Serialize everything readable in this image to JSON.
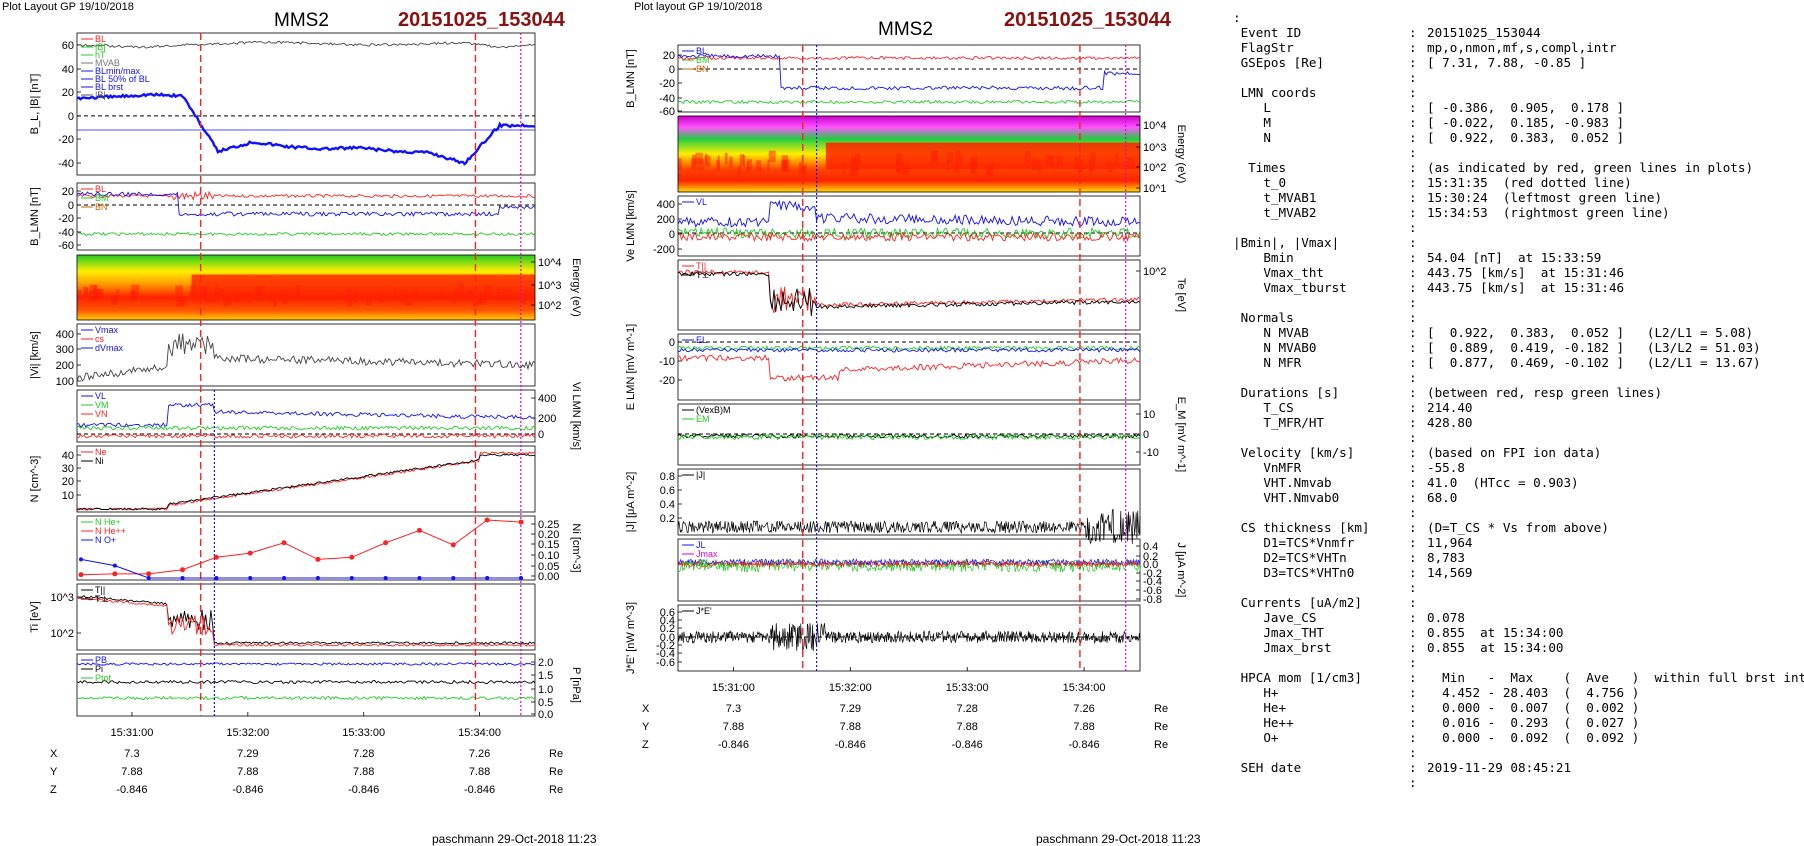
{
  "left": {
    "plot_label": "Plot Layout GP 19/10/2018",
    "spacecraft": "MMS2",
    "event": "20151025_153044",
    "footer": "paschmann 29-Oct-2018 11:23"
  },
  "middle": {
    "plot_label": "Plot layout GP 19/10/2018",
    "spacecraft": "MMS2",
    "event": "20151025_153044",
    "footer": "paschmann 29-Oct-2018 11:23"
  },
  "colors": {
    "red": "#ff2020",
    "green": "#22cc22",
    "blue": "#1010ff",
    "black": "#000000",
    "magenta": "#dd00dd",
    "gray": "#888888"
  },
  "chart_data": [
    {
      "type": "line",
      "panel": "left",
      "time_axis": {
        "range": [
          "15:30:40",
          "15:34:20"
        ],
        "ticks": [
          "15:31:00",
          "15:32:00",
          "15:33:00",
          "15:34:00"
        ]
      },
      "markers": {
        "red_dashed": [
          "15:30:24",
          "15:34:53"
        ],
        "red_dotted": "15:31:35",
        "blue_dotted": "15:31:46",
        "magenta_dotted": "15:34:00"
      },
      "position_table": {
        "rows": [
          {
            "label": "X",
            "values": [
              "7.3",
              "7.29",
              "7.28",
              "7.26"
            ],
            "unit": "Re"
          },
          {
            "label": "Y",
            "values": [
              "7.88",
              "7.88",
              "7.88",
              "7.88"
            ],
            "unit": "Re"
          },
          {
            "label": "Z",
            "values": [
              "-0.846",
              "-0.846",
              "-0.846",
              "-0.846"
            ],
            "unit": "Re"
          }
        ]
      },
      "panels": [
        {
          "ylabel": "B_L, |B| [nT]",
          "yticks": [
            "60",
            "40",
            "20",
            "0",
            "-20",
            "-40"
          ],
          "ylim": [
            -50,
            70
          ],
          "legend": [
            "BL",
            "|B|",
            "hT",
            "MVAB",
            "BLmin/max",
            "BL 50% of BL",
            "BL brst",
            "|B|"
          ],
          "series": [
            {
              "name": "BL",
              "values": [
                15,
                16,
                18,
                17,
                -30,
                -22,
                -26,
                -28,
                -27,
                -30,
                -31,
                -40,
                -8,
                -8
              ]
            },
            {
              "name": "|B|",
              "values": [
                60,
                59,
                58,
                60,
                61,
                62,
                62,
                61,
                60,
                60,
                61,
                62,
                58,
                60
              ]
            }
          ]
        },
        {
          "ylabel": "B_LMN [nT]",
          "yticks": [
            "20",
            "0",
            "-20",
            "-40",
            "-60"
          ],
          "ylim": [
            -70,
            30
          ],
          "legend": [
            "BL",
            "BM",
            "BN"
          ]
        },
        {
          "ylabel": "Energy (eV)",
          "yticks": [
            "10^4",
            "10^3",
            "10^2"
          ],
          "type": "spectrogram"
        },
        {
          "ylabel": "|Vi| [km/s]",
          "yticks": [
            "400",
            "300",
            "200",
            "100"
          ],
          "ylim": [
            80,
            450
          ],
          "legend": [
            "Vmax",
            "cs",
            "dVmax"
          ]
        },
        {
          "ylabel": "Vi LMN [km/s]",
          "yticks": [
            "400",
            "200",
            "0"
          ],
          "ylim": [
            -50,
            450
          ],
          "legend": [
            "VL",
            "VM",
            "VN"
          ]
        },
        {
          "ylabel": "N [cm^-3]",
          "yticks": [
            "40",
            "30",
            "20",
            "10"
          ],
          "ylim": [
            0,
            48
          ],
          "legend": [
            "Ne",
            "Ni"
          ]
        },
        {
          "ylabel": "Ni [cm^-3]",
          "yticks": [
            "0.25",
            "0.20",
            "0.15",
            "0.10",
            "0.05",
            "0.00"
          ],
          "ylim": [
            0,
            0.28
          ],
          "legend": [
            "N He+",
            "N He++",
            "N O+"
          ],
          "series": [
            {
              "name": "N He++",
              "values": [
                0.016,
                0.02,
                0.02,
                0.04,
                0.1,
                0.12,
                0.17,
                0.09,
                0.1,
                0.17,
                0.23,
                0.16,
                0.28,
                0.27
              ]
            },
            {
              "name": "N O+",
              "values": [
                0.09,
                0.06,
                0.0,
                0.0,
                0.0,
                0.0,
                0.0,
                0.0,
                0.0,
                0.0,
                0.0,
                0.0,
                0.0,
                0.0
              ]
            }
          ]
        },
        {
          "ylabel": "Ti [eV]",
          "yticks": [
            "10^3",
            "10^2"
          ],
          "legend": [
            "T||",
            "T⊥"
          ]
        },
        {
          "ylabel": "P [nPa]",
          "yticks": [
            "2.0",
            "1.5",
            "1.0",
            "0.5",
            "0.0"
          ],
          "ylim": [
            0,
            2.3
          ],
          "legend": [
            "PB",
            "Pi",
            "Ptot"
          ]
        }
      ]
    },
    {
      "type": "line",
      "panel": "middle",
      "time_axis": {
        "range": [
          "15:30:40",
          "15:34:20"
        ],
        "ticks": [
          "15:31:00",
          "15:32:00",
          "15:33:00",
          "15:34:00"
        ]
      },
      "markers": {
        "red_dashed": [
          "15:30:24",
          "15:34:53"
        ],
        "blue_dotted": "15:31:46",
        "magenta_dotted": "15:34:00"
      },
      "position_table": {
        "rows": [
          {
            "label": "X",
            "values": [
              "7.3",
              "7.29",
              "7.28",
              "7.26"
            ],
            "unit": "Re"
          },
          {
            "label": "Y",
            "values": [
              "7.88",
              "7.88",
              "7.88",
              "7.88"
            ],
            "unit": "Re"
          },
          {
            "label": "Z",
            "values": [
              "-0.846",
              "-0.846",
              "-0.846",
              "-0.846"
            ],
            "unit": "Re"
          }
        ]
      },
      "panels": [
        {
          "ylabel": "B_LMN [nT]",
          "yticks": [
            "20",
            "0",
            "-20",
            "-40",
            "-60"
          ],
          "ylim": [
            -70,
            30
          ],
          "legend": [
            "BL",
            "BM",
            "BN"
          ]
        },
        {
          "ylabel": "Energy (eV)",
          "yticks": [
            "10^4",
            "10^3",
            "10^2",
            "10^1"
          ],
          "type": "spectrogram"
        },
        {
          "ylabel": "Ve LMN [km/s]",
          "yticks": [
            "400",
            "200",
            "0",
            "-200"
          ],
          "ylim": [
            -300,
            500
          ],
          "legend": [
            "VL"
          ]
        },
        {
          "ylabel": "Te [eV]",
          "yticks": [
            "10^2"
          ],
          "legend": [
            "T||",
            "T⊥"
          ]
        },
        {
          "ylabel": "E LMN [mV m^-1]",
          "yticks": [
            "0",
            "-10",
            "-20"
          ],
          "ylim": [
            -25,
            5
          ],
          "legend": [
            "EL"
          ]
        },
        {
          "ylabel": "E_M [mV m^-1]",
          "yticks": [
            "10",
            "0",
            "-10"
          ],
          "ylim": [
            -15,
            15
          ],
          "legend": [
            "(VexB)M",
            "EM"
          ]
        },
        {
          "ylabel": "|J| [μA m^-2]",
          "yticks": [
            "0.8",
            "0.6",
            "0.4",
            "0.2"
          ],
          "ylim": [
            0,
            0.9
          ],
          "legend": [
            "|J|"
          ]
        },
        {
          "ylabel": "J [μA m^-2]",
          "yticks": [
            "0.4",
            "0.2",
            "0.0",
            "-0.2",
            "-0.4",
            "-0.6",
            "-0.8"
          ],
          "ylim": [
            -0.9,
            0.5
          ],
          "legend": [
            "JL",
            "Jmax",
            "JM"
          ]
        },
        {
          "ylabel": "J*E' [nW m^-3]",
          "yticks": [
            "0.6",
            "0.4",
            "0.2",
            "0.0",
            "-0.2",
            "-0.4",
            "-0.6"
          ],
          "ylim": [
            -0.7,
            0.7
          ],
          "legend": [
            "J*E'"
          ]
        }
      ]
    }
  ],
  "info": [
    {
      "k": ":",
      "c": "",
      "v": ""
    },
    {
      "k": " Event ID",
      "c": ":",
      "v": "20151025_153044"
    },
    {
      "k": " FlagStr",
      "c": ":",
      "v": "mp,o,nmon,mf,s,compl,intr"
    },
    {
      "k": " GSEpos [Re]",
      "c": ":",
      "v": "[ 7.31, 7.88, -0.85 ]"
    },
    {
      "k": "",
      "c": ":",
      "v": ""
    },
    {
      "k": " LMN coords",
      "c": ":",
      "v": ""
    },
    {
      "k": "    L",
      "c": ":",
      "v": "[ -0.386,  0.905,  0.178 ]"
    },
    {
      "k": "    M",
      "c": ":",
      "v": "[ -0.022,  0.185, -0.983 ]"
    },
    {
      "k": "    N",
      "c": ":",
      "v": "[  0.922,  0.383,  0.052 ]"
    },
    {
      "k": "",
      "c": ":",
      "v": ""
    },
    {
      "k": "  Times",
      "c": ":",
      "v": "(as indicated by red, green lines in plots)"
    },
    {
      "k": "    t_0",
      "c": ":",
      "v": "15:31:35  (red dotted line)"
    },
    {
      "k": "    t_MVAB1",
      "c": ":",
      "v": "15:30:24  (leftmost green line)"
    },
    {
      "k": "    t_MVAB2",
      "c": ":",
      "v": "15:34:53  (rightmost green line)"
    },
    {
      "k": "",
      "c": ":",
      "v": ""
    },
    {
      "k": "|Bmin|, |Vmax|",
      "c": ":",
      "v": ""
    },
    {
      "k": "    Bmin",
      "c": ":",
      "v": "54.04 [nT]  at 15:33:59"
    },
    {
      "k": "    Vmax_tht",
      "c": ":",
      "v": "443.75 [km/s]  at 15:31:46"
    },
    {
      "k": "    Vmax_tburst",
      "c": ":",
      "v": "443.75 [km/s]  at 15:31:46"
    },
    {
      "k": "",
      "c": ":",
      "v": ""
    },
    {
      "k": " Normals",
      "c": ":",
      "v": ""
    },
    {
      "k": "    N MVAB",
      "c": ":",
      "v": "[  0.922,  0.383,  0.052 ]   (L2/L1 = 5.08)"
    },
    {
      "k": "    N MVAB0",
      "c": ":",
      "v": "[  0.889,  0.419, -0.182 ]   (L3/L2 = 51.03)"
    },
    {
      "k": "    N MFR",
      "c": ":",
      "v": "[  0.877,  0.469, -0.102 ]   (L2/L1 = 13.67)"
    },
    {
      "k": "",
      "c": ":",
      "v": ""
    },
    {
      "k": " Durations [s]",
      "c": ":",
      "v": "(between red, resp green lines)"
    },
    {
      "k": "    T_CS",
      "c": ":",
      "v": "214.40"
    },
    {
      "k": "    T_MFR/HT",
      "c": ":",
      "v": "428.80"
    },
    {
      "k": "",
      "c": ":",
      "v": ""
    },
    {
      "k": " Velocity [km/s]",
      "c": ":",
      "v": "(based on FPI ion data)"
    },
    {
      "k": "    VnMFR",
      "c": ":",
      "v": "-55.8"
    },
    {
      "k": "    VHT.Nmvab",
      "c": ":",
      "v": "41.0  (HTcc = 0.903)"
    },
    {
      "k": "    VHT.Nmvab0",
      "c": ":",
      "v": "68.0"
    },
    {
      "k": "",
      "c": ":",
      "v": ""
    },
    {
      "k": " CS thickness [km]",
      "c": ":",
      "v": "(D=T_CS * Vs from above)"
    },
    {
      "k": "    D1=TCS*Vnmfr",
      "c": ":",
      "v": "11,964"
    },
    {
      "k": "    D2=TCS*VHTn",
      "c": ":",
      "v": "8,783"
    },
    {
      "k": "    D3=TCS*VHTn0",
      "c": ":",
      "v": "14,569"
    },
    {
      "k": "",
      "c": ":",
      "v": ""
    },
    {
      "k": " Currents [uA/m2]",
      "c": ":",
      "v": ""
    },
    {
      "k": "    Jave_CS",
      "c": ":",
      "v": "0.078"
    },
    {
      "k": "    Jmax_THT",
      "c": ":",
      "v": "0.855  at 15:34:00"
    },
    {
      "k": "    Jmax_brst",
      "c": ":",
      "v": "0.855  at 15:34:00"
    },
    {
      "k": "",
      "c": ":",
      "v": ""
    },
    {
      "k": " HPCA mom [1/cm3]",
      "c": ":",
      "v": "  Min   -  Max    (  Ave   )  within full brst int"
    },
    {
      "k": "    H+",
      "c": ":",
      "v": "  4.452 - 28.403  (  4.756 )"
    },
    {
      "k": "    He+",
      "c": ":",
      "v": "  0.000 -  0.007  (  0.002 )"
    },
    {
      "k": "    He++",
      "c": ":",
      "v": "  0.016 -  0.293  (  0.027 )"
    },
    {
      "k": "    O+",
      "c": ":",
      "v": "  0.000 -  0.092  (  0.092 )"
    },
    {
      "k": "",
      "c": ":",
      "v": ""
    },
    {
      "k": " SEH date",
      "c": ":",
      "v": "2019-11-29 08:45:21"
    },
    {
      "k": "",
      "c": ":",
      "v": ""
    }
  ]
}
